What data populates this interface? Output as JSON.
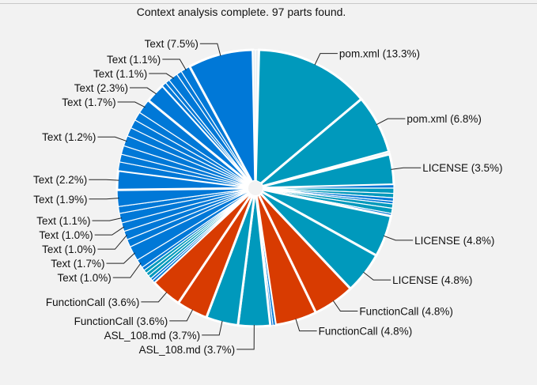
{
  "status_message": "Context analysis complete. 97 parts found.",
  "colors": {
    "text_parts": "#0078D7",
    "file_parts": "#0099BC",
    "function_parts": "#D83B01",
    "gap": "#e8eef2",
    "background": "#f2f2f2"
  },
  "chart_data": {
    "type": "pie",
    "start": "top",
    "direction": "clockwise",
    "unit": "%",
    "slices": [
      {
        "label": "",
        "value": 0.4,
        "color": "#e8eef2"
      },
      {
        "label": "pom.xml (13.3%)",
        "value": 13.3,
        "color": "#0099BC"
      },
      {
        "label": "pom.xml (6.8%)",
        "value": 6.8,
        "color": "#0099BC"
      },
      {
        "label": "",
        "value": 0.3,
        "color": "#e8eef2"
      },
      {
        "label": "LICENSE (3.5%)",
        "value": 3.5,
        "color": "#0099BC"
      },
      {
        "label": "",
        "value": 0.4,
        "color": "#0078D7"
      },
      {
        "label": "",
        "value": 0.6,
        "color": "#0099BC"
      },
      {
        "label": "",
        "value": 0.5,
        "color": "#0099BC"
      },
      {
        "label": "",
        "value": 0.4,
        "color": "#0078D7"
      },
      {
        "label": "",
        "value": 0.3,
        "color": "#0078D7"
      },
      {
        "label": "",
        "value": 0.5,
        "color": "#0099BC"
      },
      {
        "label": "",
        "value": 0.6,
        "color": "#0099BC"
      },
      {
        "label": "",
        "value": 0.3,
        "color": "#0078D7"
      },
      {
        "label": "LICENSE (4.8%)",
        "value": 4.8,
        "color": "#0099BC"
      },
      {
        "label": "LICENSE (4.8%)",
        "value": 4.8,
        "color": "#0099BC"
      },
      {
        "label": "FunctionCall (4.8%)",
        "value": 4.8,
        "color": "#D83B01"
      },
      {
        "label": "FunctionCall (4.8%)",
        "value": 4.8,
        "color": "#D83B01"
      },
      {
        "label": "",
        "value": 0.3,
        "color": "#0078D7"
      },
      {
        "label": "",
        "value": 0.3,
        "color": "#0078D7"
      },
      {
        "label": "ASL_108.md (3.7%)",
        "value": 3.7,
        "color": "#0099BC"
      },
      {
        "label": "ASL_108.md (3.7%)",
        "value": 3.7,
        "color": "#0099BC"
      },
      {
        "label": "FunctionCall (3.6%)",
        "value": 3.6,
        "color": "#D83B01"
      },
      {
        "label": "FunctionCall (3.6%)",
        "value": 3.6,
        "color": "#D83B01"
      },
      {
        "label": "",
        "value": 0.3,
        "color": "#0078D7"
      },
      {
        "label": "",
        "value": 0.3,
        "color": "#0078D7"
      },
      {
        "label": "",
        "value": 0.4,
        "color": "#0099BC"
      },
      {
        "label": "",
        "value": 0.4,
        "color": "#0099BC"
      },
      {
        "label": "",
        "value": 0.4,
        "color": "#0099BC"
      },
      {
        "label": "",
        "value": 0.4,
        "color": "#0078D7"
      },
      {
        "label": "Text (1.0%)",
        "value": 1.0,
        "color": "#0078D7"
      },
      {
        "label": "Text (1.7%)",
        "value": 1.7,
        "color": "#0078D7"
      },
      {
        "label": "",
        "value": 0.9,
        "color": "#0078D7"
      },
      {
        "label": "Text (1.0%)",
        "value": 1.0,
        "color": "#0078D7"
      },
      {
        "label": "Text (1.0%)",
        "value": 1.0,
        "color": "#0078D7"
      },
      {
        "label": "Text (1.1%)",
        "value": 1.1,
        "color": "#0078D7"
      },
      {
        "label": "",
        "value": 0.8,
        "color": "#0078D7"
      },
      {
        "label": "Text (1.9%)",
        "value": 1.9,
        "color": "#0078D7"
      },
      {
        "label": "Text (2.2%)",
        "value": 2.2,
        "color": "#0078D7"
      },
      {
        "label": "",
        "value": 1.0,
        "color": "#0078D7"
      },
      {
        "label": "",
        "value": 0.9,
        "color": "#0078D7"
      },
      {
        "label": "",
        "value": 1.0,
        "color": "#0078D7"
      },
      {
        "label": "Text (1.2%)",
        "value": 1.2,
        "color": "#0078D7"
      },
      {
        "label": "",
        "value": 1.0,
        "color": "#0078D7"
      },
      {
        "label": "",
        "value": 1.0,
        "color": "#0078D7"
      },
      {
        "label": "",
        "value": 1.0,
        "color": "#0078D7"
      },
      {
        "label": "Text (1.7%)",
        "value": 1.7,
        "color": "#0078D7"
      },
      {
        "label": "Text (2.3%)",
        "value": 2.3,
        "color": "#0078D7"
      },
      {
        "label": "",
        "value": 0.5,
        "color": "#0078D7"
      },
      {
        "label": "",
        "value": 0.5,
        "color": "#0078D7"
      },
      {
        "label": "Text (1.1%)",
        "value": 1.1,
        "color": "#0078D7"
      },
      {
        "label": "",
        "value": 0.6,
        "color": "#0078D7"
      },
      {
        "label": "Text (1.1%)",
        "value": 1.1,
        "color": "#0078D7"
      },
      {
        "label": "Text (7.5%)",
        "value": 7.5,
        "color": "#0078D7"
      },
      {
        "label": "",
        "value": 0.3,
        "color": "#e8eef2"
      }
    ]
  }
}
